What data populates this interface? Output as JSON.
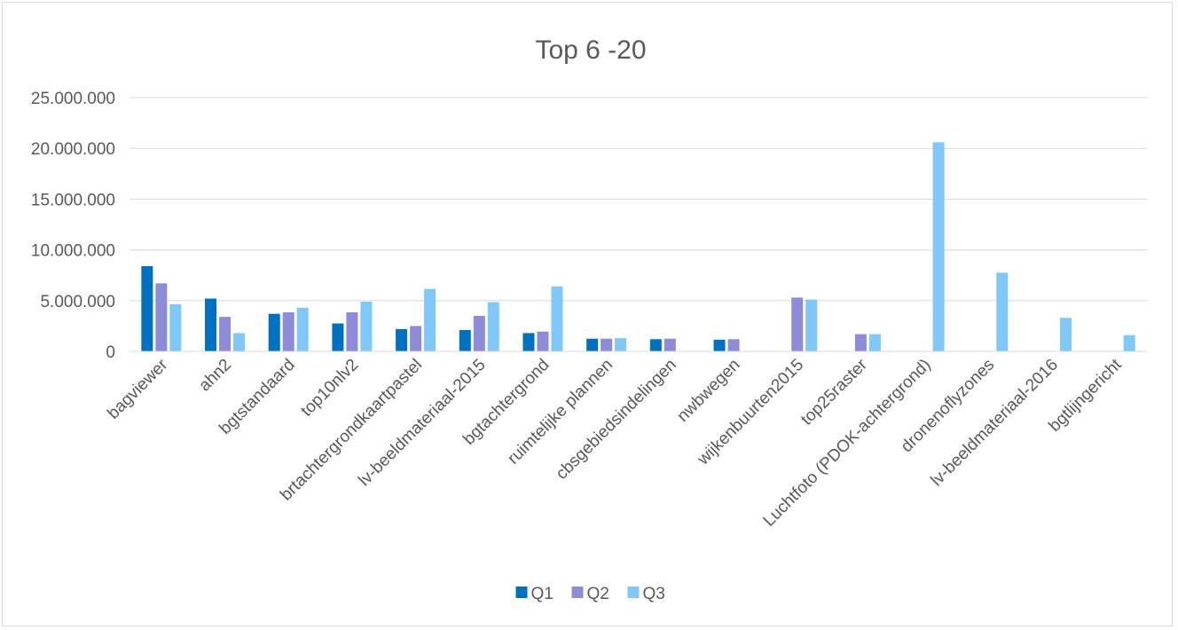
{
  "chart_data": {
    "type": "bar",
    "title": "Top 6 -20",
    "xlabel": "",
    "ylabel": "",
    "ylim": [
      0,
      25000000
    ],
    "yticks": [
      0,
      5000000,
      10000000,
      15000000,
      20000000,
      25000000
    ],
    "ytick_labels": [
      "0",
      "5.000.000",
      "10.000.000",
      "15.000.000",
      "20.000.000",
      "25.000.000"
    ],
    "grid": true,
    "legend_position": "bottom",
    "categories": [
      "bagviewer",
      "ahn2",
      "bgtstandaard",
      "top10nlv2",
      "brtachtergrondkaartpastel",
      "lv-beeldmateriaal-2015",
      "bgtachtergrond",
      "ruimtelijke plannen",
      "cbsgebiedsindelingen",
      "nwbwegen",
      "wijkenbuurten2015",
      "top25raster",
      "Luchtfoto (PDOK-achtergrond)",
      "dronenoflyzones",
      "lv-beeldmateriaal-2016",
      "bgtlijngericht"
    ],
    "series": [
      {
        "name": "Q1",
        "color": "#0070c0",
        "values": [
          8400000,
          5200000,
          3700000,
          2750000,
          2200000,
          2100000,
          1800000,
          1250000,
          1200000,
          1150000,
          null,
          null,
          null,
          null,
          null,
          null
        ]
      },
      {
        "name": "Q2",
        "color": "#8e8cd8",
        "values": [
          6700000,
          3400000,
          3850000,
          3850000,
          2500000,
          3500000,
          1950000,
          1250000,
          1250000,
          1200000,
          5300000,
          1700000,
          null,
          null,
          null,
          null
        ]
      },
      {
        "name": "Q3",
        "color": "#7fc8f8",
        "values": [
          4650000,
          1800000,
          4300000,
          4900000,
          6150000,
          4850000,
          6400000,
          1300000,
          null,
          null,
          5100000,
          1700000,
          20600000,
          7750000,
          3300000,
          1600000
        ]
      }
    ]
  }
}
